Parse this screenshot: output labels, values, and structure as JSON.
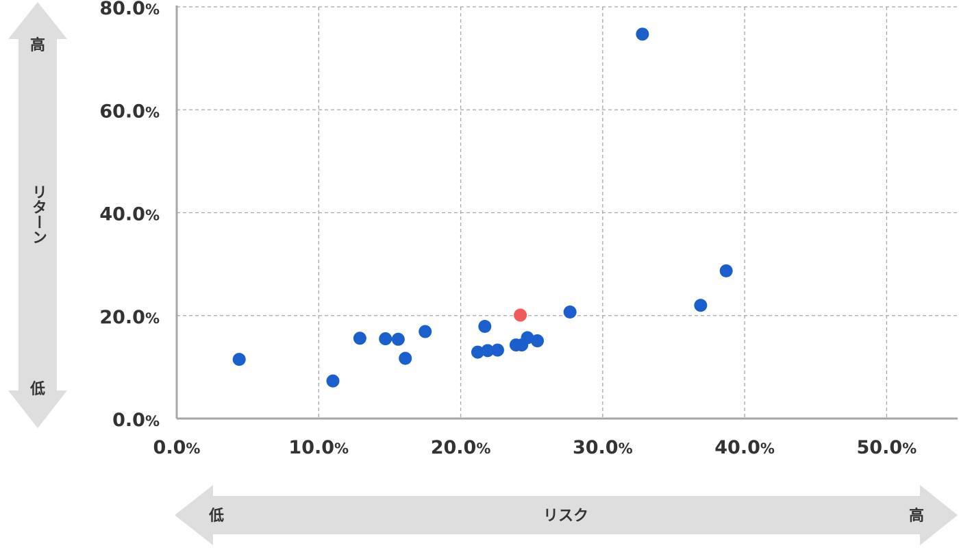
{
  "chart_data": {
    "type": "scatter",
    "title": "",
    "xlabel": "リスク",
    "ylabel": "リターン",
    "xlim": [
      0,
      55
    ],
    "ylim": [
      0,
      80
    ],
    "x_ticks": [
      0,
      10,
      20,
      30,
      40,
      50
    ],
    "y_ticks": [
      0,
      20,
      40,
      60,
      80
    ],
    "x_tick_labels": [
      "0.0%",
      "10.0%",
      "20.0%",
      "30.0%",
      "40.0%",
      "50.0%"
    ],
    "y_tick_labels": [
      "0.0%",
      "20.0%",
      "40.0%",
      "60.0%",
      "80.0%"
    ],
    "grid": true,
    "x_axis_arrow": {
      "low_label": "低",
      "high_label": "高",
      "label": "リスク"
    },
    "y_axis_arrow": {
      "low_label": "低",
      "high_label": "高",
      "label": "リターン"
    },
    "colors": {
      "point": "#1a5fcc",
      "highlight": "#f25a5a",
      "grid": "#a6a6a6",
      "axis": "#a6a6a6",
      "arrow_fill": "#dedede",
      "text": "#333333"
    },
    "series": [
      {
        "points": [
          [
            4.4,
            11.5
          ],
          [
            11.0,
            7.3
          ],
          [
            12.9,
            15.6
          ],
          [
            14.7,
            15.5
          ],
          [
            15.6,
            15.4
          ],
          [
            16.1,
            11.7
          ],
          [
            17.5,
            16.9
          ],
          [
            21.2,
            12.9
          ],
          [
            21.7,
            17.9
          ],
          [
            21.9,
            13.2
          ],
          [
            22.6,
            13.3
          ],
          [
            23.9,
            14.3
          ],
          [
            24.3,
            14.3
          ],
          [
            24.7,
            15.7
          ],
          [
            25.4,
            15.1
          ],
          [
            27.7,
            20.7
          ],
          [
            32.8,
            74.7
          ],
          [
            36.9,
            22.0
          ],
          [
            38.7,
            28.7
          ]
        ]
      },
      {
        "highlight": true,
        "points": [
          [
            24.2,
            20.1
          ]
        ]
      }
    ]
  }
}
